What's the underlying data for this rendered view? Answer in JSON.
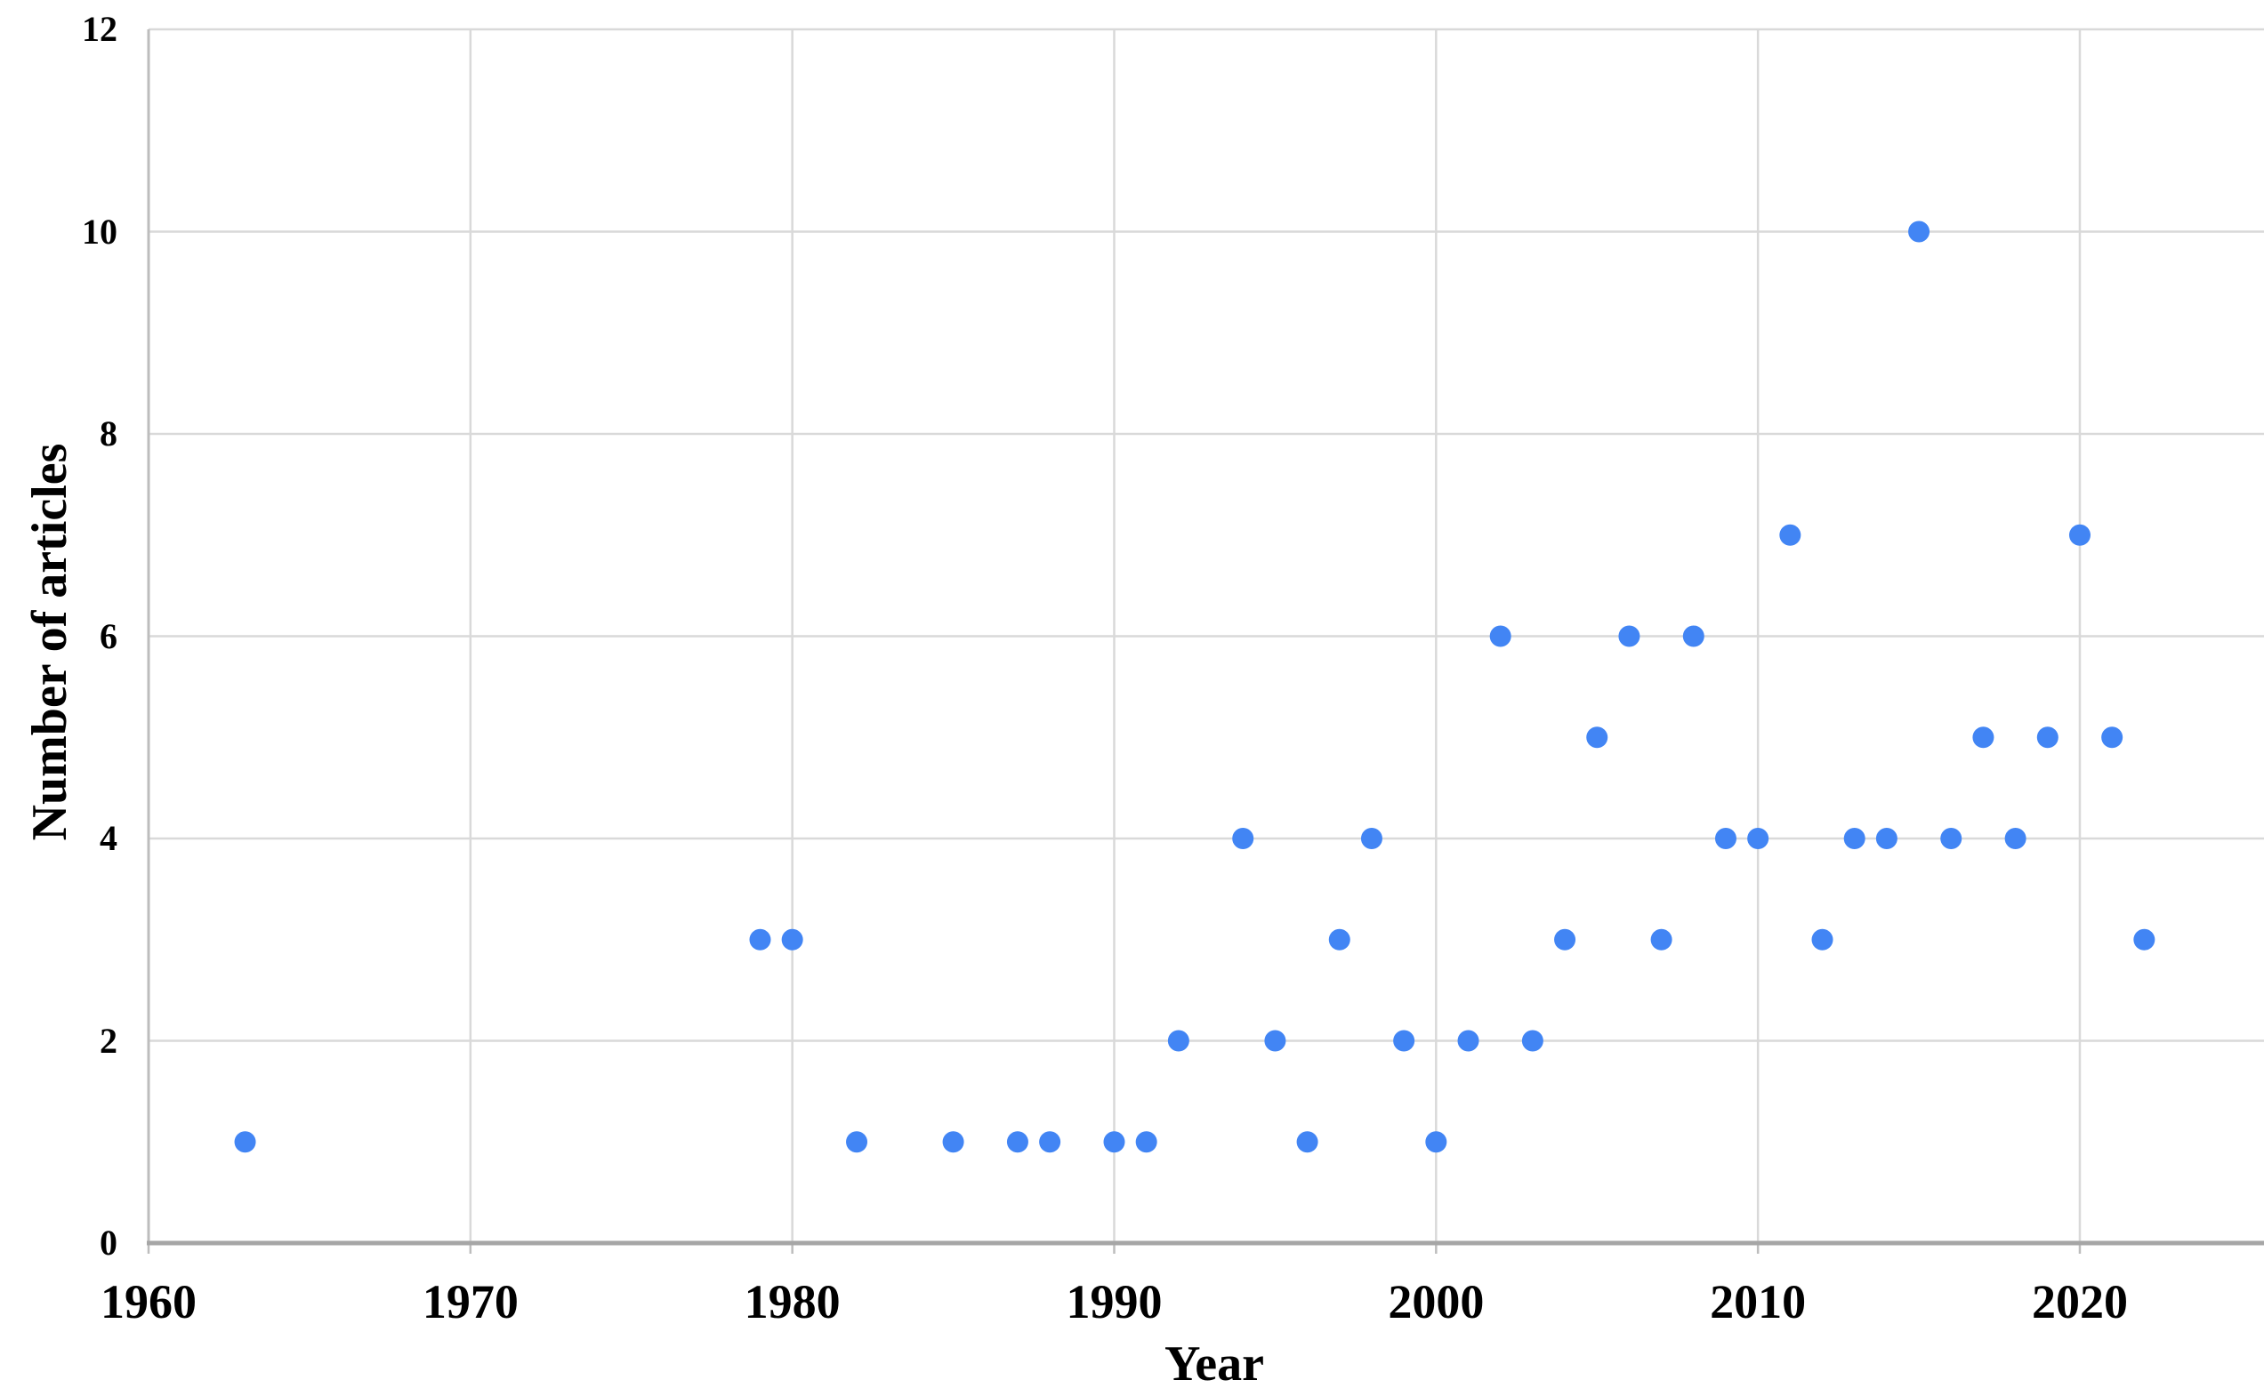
{
  "chart_data": {
    "type": "scatter",
    "title": "",
    "xlabel": "Year",
    "ylabel": "Number of articles",
    "x_axis": {
      "min": 1960,
      "max": 2025,
      "ticks": [
        1960,
        1970,
        1980,
        1990,
        2000,
        2010,
        2020
      ]
    },
    "y_axis": {
      "min": 0,
      "max": 12,
      "ticks": [
        0,
        2,
        4,
        6,
        8,
        10,
        12
      ]
    },
    "grid": "on",
    "legend": "none",
    "marker": {
      "shape": "circle",
      "color": "#4285F4"
    },
    "colors": {
      "background": "#FFFFFF",
      "gridline": "#D9D9D9",
      "x_axis_line": "#A6A6A6",
      "y_axis_line": "#BDBDBD",
      "text": "#000000"
    },
    "points": [
      [
        1963,
        1
      ],
      [
        1979,
        3
      ],
      [
        1980,
        3
      ],
      [
        1982,
        1
      ],
      [
        1985,
        1
      ],
      [
        1987,
        1
      ],
      [
        1988,
        1
      ],
      [
        1990,
        1
      ],
      [
        1991,
        1
      ],
      [
        1992,
        2
      ],
      [
        1994,
        4
      ],
      [
        1995,
        2
      ],
      [
        1996,
        1
      ],
      [
        1997,
        3
      ],
      [
        1998,
        4
      ],
      [
        1999,
        2
      ],
      [
        2000,
        1
      ],
      [
        2001,
        2
      ],
      [
        2002,
        6
      ],
      [
        2003,
        2
      ],
      [
        2004,
        3
      ],
      [
        2005,
        5
      ],
      [
        2006,
        6
      ],
      [
        2007,
        3
      ],
      [
        2008,
        6
      ],
      [
        2009,
        4
      ],
      [
        2010,
        4
      ],
      [
        2011,
        7
      ],
      [
        2012,
        3
      ],
      [
        2013,
        4
      ],
      [
        2014,
        4
      ],
      [
        2015,
        10
      ],
      [
        2016,
        4
      ],
      [
        2017,
        5
      ],
      [
        2018,
        4
      ],
      [
        2019,
        5
      ],
      [
        2020,
        7
      ],
      [
        2021,
        5
      ],
      [
        2022,
        3
      ]
    ]
  }
}
